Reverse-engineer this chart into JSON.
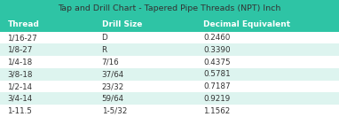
{
  "title": "Tap and Drill Chart - Tapered Pipe Threads (NPT) Inch",
  "columns": [
    "Thread",
    "Drill Size",
    "Decimal Equivalent"
  ],
  "rows": [
    [
      "1/16-27",
      "D",
      "0.2460"
    ],
    [
      "1/8-27",
      "R",
      "0.3390"
    ],
    [
      "1/4-18",
      "7/16",
      "0.4375"
    ],
    [
      "3/8-18",
      "37/64",
      "0.5781"
    ],
    [
      "1/2-14",
      "23/32",
      "0.7187"
    ],
    [
      "3/4-14",
      "59/64",
      "0.9219"
    ],
    [
      "1-11.5",
      "1-5/32",
      "1.1562"
    ]
  ],
  "bg_color": "#2ec4a5",
  "row_colors": [
    "#ffffff",
    "#ddf4ef"
  ],
  "header_text_color": "#ffffff",
  "data_text_color": "#333333",
  "title_color": "#333333",
  "col_starts": [
    0.022,
    0.3,
    0.6
  ],
  "title_fontsize": 6.8,
  "header_fontsize": 6.5,
  "data_fontsize": 6.3
}
